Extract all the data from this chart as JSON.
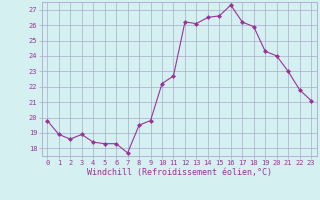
{
  "x": [
    0,
    1,
    2,
    3,
    4,
    5,
    6,
    7,
    8,
    9,
    10,
    11,
    12,
    13,
    14,
    15,
    16,
    17,
    18,
    19,
    20,
    21,
    22,
    23
  ],
  "y": [
    19.8,
    18.9,
    18.6,
    18.9,
    18.4,
    18.3,
    18.3,
    17.7,
    19.5,
    19.8,
    22.2,
    22.7,
    26.2,
    26.1,
    26.5,
    26.6,
    27.3,
    26.2,
    25.9,
    24.3,
    24.0,
    23.0,
    21.8,
    21.1
  ],
  "xlabel": "Windchill (Refroidissement éolien,°C)",
  "ylim": [
    17.5,
    27.5
  ],
  "yticks": [
    18,
    19,
    20,
    21,
    22,
    23,
    24,
    25,
    26,
    27
  ],
  "xlim": [
    -0.5,
    23.5
  ],
  "line_color": "#993399",
  "marker": "D",
  "marker_size": 2.0,
  "bg_color": "#d5f0f0",
  "grid_color": "#aaaacc",
  "tick_label_color": "#993399",
  "axis_label_color": "#993399",
  "font_family": "monospace",
  "tick_fontsize": 5.0,
  "xlabel_fontsize": 6.0
}
